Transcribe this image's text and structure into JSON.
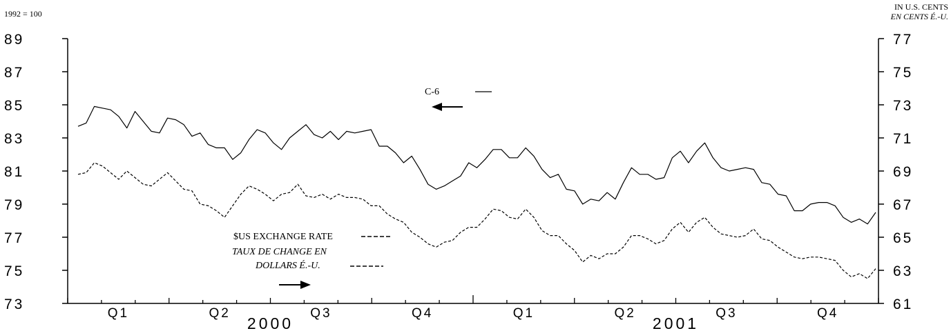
{
  "chart_data": {
    "type": "line",
    "left_unit": "1992 = 100",
    "right_unit_en": "IN U.S. CENTS",
    "right_unit_fr": "EN CENTS É.-U.",
    "left_axis": {
      "ylim": [
        73,
        89
      ],
      "ticks": [
        "89",
        "87",
        "85",
        "83",
        "81",
        "79",
        "77",
        "75",
        "73"
      ]
    },
    "right_axis": {
      "ylim": [
        61,
        77
      ],
      "ticks": [
        "77",
        "75",
        "73",
        "71",
        "69",
        "67",
        "65",
        "63",
        "61"
      ]
    },
    "quarter_labels": [
      "Q1",
      "Q2",
      "Q3",
      "Q4",
      "Q1",
      "Q2",
      "Q3",
      "Q4"
    ],
    "year_labels": [
      "2000",
      "2001"
    ],
    "series": [
      {
        "name": "C-6",
        "axis": "left",
        "style": "solid",
        "values": [
          83.7,
          83.9,
          84.9,
          84.8,
          84.7,
          84.3,
          83.6,
          84.6,
          84.0,
          83.4,
          83.3,
          84.2,
          84.1,
          83.8,
          83.1,
          83.3,
          82.6,
          82.4,
          82.4,
          81.7,
          82.1,
          82.9,
          83.5,
          83.3,
          82.7,
          82.3,
          83.0,
          83.4,
          83.8,
          83.2,
          83.0,
          83.4,
          82.9,
          83.4,
          83.3,
          83.4,
          83.5,
          82.5,
          82.5,
          82.1,
          81.5,
          81.9,
          81.1,
          80.2,
          79.9,
          80.1,
          80.4,
          80.7,
          81.5,
          81.2,
          81.7,
          82.3,
          82.3,
          81.8,
          81.8,
          82.4,
          81.9,
          81.1,
          80.6,
          80.8,
          79.9,
          79.8,
          79.0,
          79.3,
          79.2,
          79.7,
          79.3,
          80.3,
          81.2,
          80.8,
          80.8,
          80.5,
          80.6,
          81.8,
          82.2,
          81.5,
          82.2,
          82.7,
          81.8,
          81.2,
          81.0,
          81.1,
          81.2,
          81.1,
          80.3,
          80.2,
          79.6,
          79.5,
          78.6,
          78.6,
          79.0,
          79.1,
          79.1,
          78.9,
          78.2,
          77.9,
          78.1,
          77.8,
          78.5
        ]
      },
      {
        "name": "$US EXCHANGE RATE",
        "name_fr": "TAUX DE CHANGE EN DOLLARS É.-U.",
        "axis": "right",
        "style": "dashed",
        "values": [
          68.8,
          68.9,
          69.5,
          69.3,
          68.9,
          68.5,
          69.0,
          68.6,
          68.2,
          68.1,
          68.5,
          68.9,
          68.4,
          67.9,
          67.8,
          67.0,
          66.9,
          66.6,
          66.2,
          66.9,
          67.6,
          68.1,
          67.9,
          67.6,
          67.2,
          67.6,
          67.7,
          68.2,
          67.5,
          67.4,
          67.6,
          67.3,
          67.6,
          67.4,
          67.4,
          67.3,
          66.9,
          66.9,
          66.4,
          66.1,
          65.9,
          65.3,
          65.0,
          64.6,
          64.4,
          64.7,
          64.8,
          65.3,
          65.6,
          65.6,
          66.1,
          66.7,
          66.6,
          66.2,
          66.1,
          66.7,
          66.2,
          65.4,
          65.1,
          65.1,
          64.6,
          64.2,
          63.5,
          63.9,
          63.7,
          64.0,
          64.0,
          64.4,
          65.1,
          65.1,
          64.9,
          64.6,
          64.8,
          65.5,
          65.9,
          65.3,
          65.9,
          66.2,
          65.6,
          65.2,
          65.1,
          65.0,
          65.1,
          65.5,
          64.9,
          64.8,
          64.4,
          64.1,
          63.8,
          63.7,
          63.8,
          63.8,
          63.7,
          63.6,
          63.0,
          62.6,
          62.8,
          62.5,
          63.1
        ]
      }
    ],
    "legend": {
      "c6_label": "C-6",
      "usd_label_en": "$US EXCHANGE RATE",
      "usd_label_fr_line1": "TAUX DE CHANGE EN",
      "usd_label_fr_line2": "DOLLARS É.-U.",
      "c6_axis_arrow": "left",
      "usd_axis_arrow": "right"
    }
  }
}
